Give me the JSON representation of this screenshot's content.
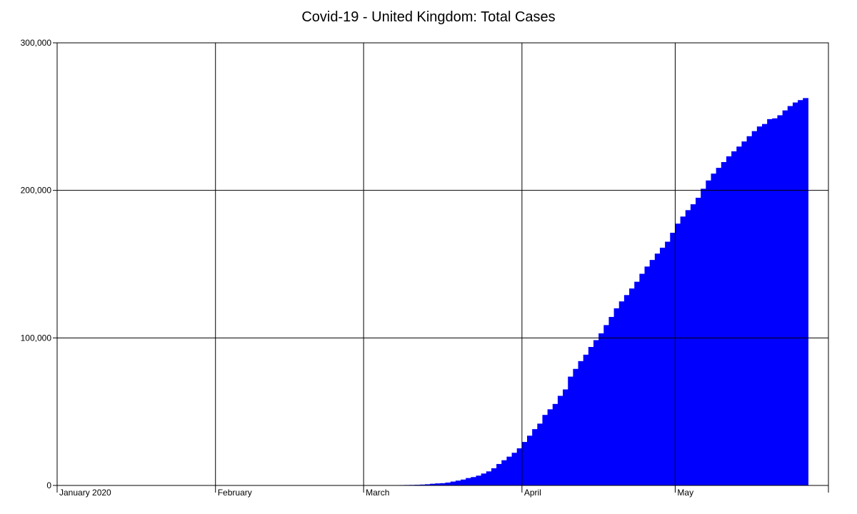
{
  "chart_data": {
    "type": "area",
    "title": "Covid-19 - United Kingdom: Total Cases",
    "xlabel": "",
    "ylabel": "",
    "x_range": [
      "2020-01-01",
      "2020-05-31"
    ],
    "ylim": [
      0,
      300000
    ],
    "x_ticks": [
      {
        "date": "2020-01-01",
        "label": "January 2020"
      },
      {
        "date": "2020-02-01",
        "label": "February"
      },
      {
        "date": "2020-03-01",
        "label": "March"
      },
      {
        "date": "2020-04-01",
        "label": "April"
      },
      {
        "date": "2020-05-01",
        "label": "May"
      }
    ],
    "y_ticks": [
      {
        "value": 0,
        "label": "0"
      },
      {
        "value": 100000,
        "label": "100,000"
      },
      {
        "value": 200000,
        "label": "200,000"
      },
      {
        "value": 300000,
        "label": "300,000"
      }
    ],
    "grid": true,
    "legend": "none",
    "fill_color": "#0000ff",
    "series": [
      {
        "x": [
          "2020-03-02",
          "2020-03-03",
          "2020-03-04",
          "2020-03-05",
          "2020-03-06",
          "2020-03-07",
          "2020-03-08",
          "2020-03-09",
          "2020-03-10",
          "2020-03-11",
          "2020-03-12",
          "2020-03-13",
          "2020-03-14",
          "2020-03-15",
          "2020-03-16",
          "2020-03-17",
          "2020-03-18",
          "2020-03-19",
          "2020-03-20",
          "2020-03-21",
          "2020-03-22",
          "2020-03-23",
          "2020-03-24",
          "2020-03-25",
          "2020-03-26",
          "2020-03-27",
          "2020-03-28",
          "2020-03-29",
          "2020-03-30",
          "2020-03-31",
          "2020-04-01",
          "2020-04-02",
          "2020-04-03",
          "2020-04-04",
          "2020-04-05",
          "2020-04-06",
          "2020-04-07",
          "2020-04-08",
          "2020-04-09",
          "2020-04-10",
          "2020-04-11",
          "2020-04-12",
          "2020-04-13",
          "2020-04-14",
          "2020-04-15",
          "2020-04-16",
          "2020-04-17",
          "2020-04-18",
          "2020-04-19",
          "2020-04-20",
          "2020-04-21",
          "2020-04-22",
          "2020-04-23",
          "2020-04-24",
          "2020-04-25",
          "2020-04-26",
          "2020-04-27",
          "2020-04-28",
          "2020-04-29",
          "2020-04-30",
          "2020-05-01",
          "2020-05-02",
          "2020-05-03",
          "2020-05-04",
          "2020-05-05",
          "2020-05-06",
          "2020-05-07",
          "2020-05-08",
          "2020-05-09",
          "2020-05-10",
          "2020-05-11",
          "2020-05-12",
          "2020-05-13",
          "2020-05-14",
          "2020-05-15",
          "2020-05-16",
          "2020-05-17",
          "2020-05-18",
          "2020-05-19",
          "2020-05-20",
          "2020-05-21",
          "2020-05-22",
          "2020-05-23",
          "2020-05-24",
          "2020-05-25",
          "2020-05-26"
        ],
        "values": [
          40,
          51,
          85,
          114,
          163,
          206,
          273,
          321,
          373,
          456,
          590,
          798,
          1140,
          1391,
          1543,
          1950,
          2626,
          3269,
          3983,
          5018,
          5683,
          6650,
          8077,
          9529,
          11658,
          14543,
          17089,
          19522,
          22141,
          25150,
          29474,
          33718,
          38168,
          41903,
          47806,
          51608,
          55242,
          60733,
          65077,
          73758,
          78991,
          84279,
          88621,
          93873,
          98476,
          103093,
          108692,
          114217,
          120067,
          124743,
          129044,
          133495,
          138078,
          143464,
          148377,
          152840,
          157149,
          161145,
          165221,
          171253,
          177454,
          182260,
          186599,
          190584,
          194990,
          201101,
          206715,
          211364,
          215260,
          219183,
          223060,
          226463,
          229705,
          233151,
          236711,
          240161,
          243303,
          244995,
          248293,
          248818,
          250908,
          254195,
          257154,
          259559,
          261184,
          262547
        ]
      }
    ]
  }
}
